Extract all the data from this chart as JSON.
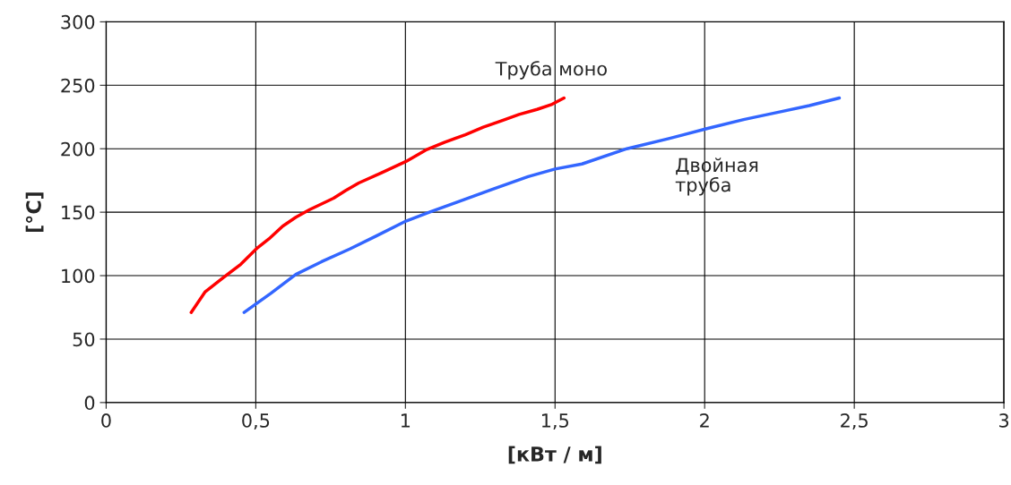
{
  "chart_data": {
    "type": "line",
    "xlabel": "[кВт / м]",
    "ylabel": "[°C]",
    "xlim": [
      0,
      3
    ],
    "ylim": [
      0,
      300
    ],
    "xticks": [
      0,
      {
        "value": 0.5,
        "label": "0,5"
      },
      1,
      {
        "value": 1.5,
        "label": "1,5"
      },
      2,
      {
        "value": 2.5,
        "label": "2,5"
      },
      3
    ],
    "yticks": [
      0,
      50,
      100,
      150,
      200,
      250,
      300
    ],
    "grid": true,
    "legend": false,
    "series": [
      {
        "name": "Труба моно",
        "color": "#ff0000",
        "x": [
          0.284,
          0.33,
          0.389,
          0.45,
          0.506,
          0.544,
          0.59,
          0.634,
          0.68,
          0.724,
          0.76,
          0.8,
          0.844,
          0.92,
          1.002,
          1.068,
          1.13,
          1.2,
          1.26,
          1.32,
          1.38,
          1.44,
          1.49,
          1.53
        ],
        "values": [
          71,
          87,
          98,
          109,
          122,
          129,
          139,
          146,
          152,
          157,
          161,
          167,
          173,
          181,
          190,
          199,
          205,
          211,
          217,
          222,
          227,
          231,
          235,
          240
        ]
      },
      {
        "name": "Двойная труба",
        "color": "#3366ff",
        "x": [
          0.461,
          0.55,
          0.634,
          0.72,
          0.814,
          0.9,
          1.002,
          1.08,
          1.173,
          1.29,
          1.41,
          1.5,
          1.59,
          1.74,
          1.88,
          2.01,
          2.13,
          2.25,
          2.35,
          2.45
        ],
        "values": [
          71,
          86,
          101,
          111,
          121,
          131,
          143,
          150,
          158,
          168,
          178,
          184,
          188,
          200,
          208,
          216,
          223,
          229,
          234,
          240
        ]
      }
    ]
  }
}
